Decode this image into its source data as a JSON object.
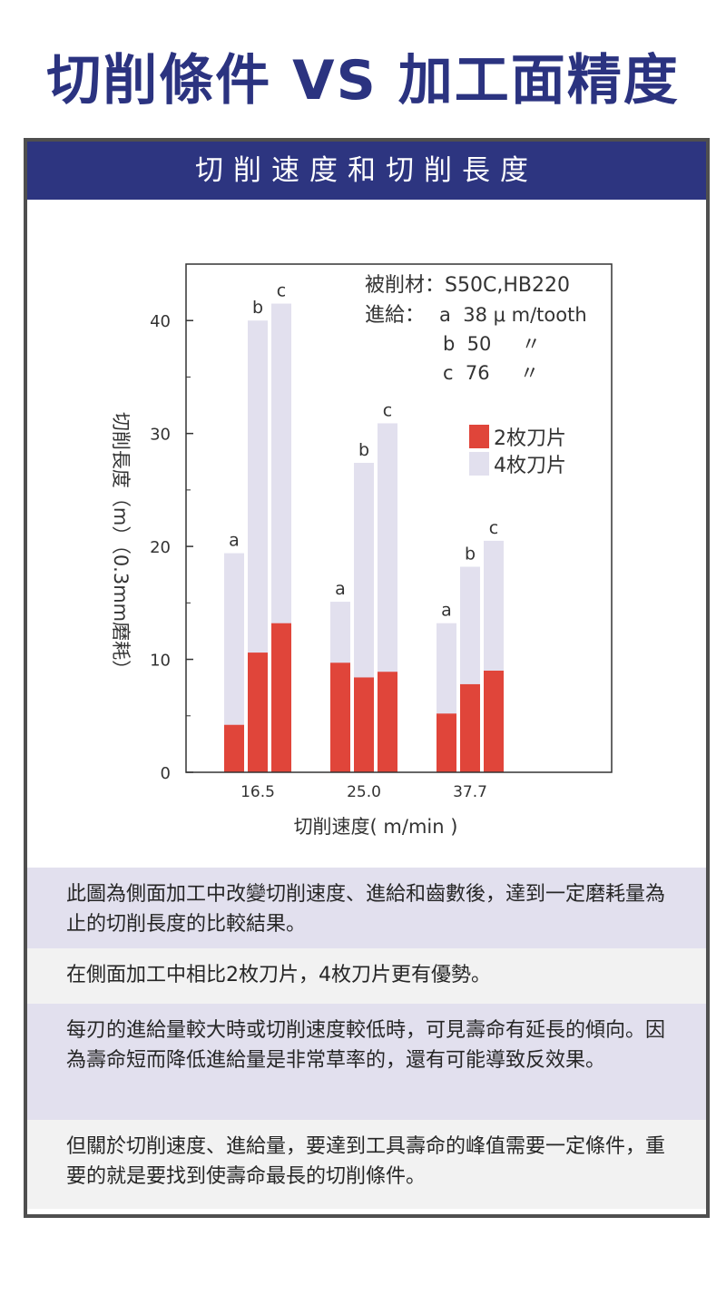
{
  "title": "切削條件 VS 加工面精度",
  "panel": {
    "header": "切削速度和切削長度"
  },
  "chart_data": {
    "type": "bar",
    "xlabel": "切削速度( m/min )",
    "ylabel": "切削長度（m）（0.3mm磨耗）",
    "ylim": [
      0,
      45
    ],
    "yticks": [
      0,
      10,
      20,
      30,
      40
    ],
    "categories": [
      "16.5",
      "25.0",
      "37.7"
    ],
    "bar_labels": [
      "a",
      "b",
      "c"
    ],
    "series": [
      {
        "name": "2枚刀片",
        "color": "#e0453a",
        "values": [
          [
            4.2,
            10.6,
            13.2
          ],
          [
            9.7,
            8.4,
            8.9
          ],
          [
            5.2,
            7.8,
            9.0
          ]
        ]
      },
      {
        "name": "4枚刀片",
        "color": "#e2e0ee",
        "values": [
          [
            19.4,
            40.0,
            41.5
          ],
          [
            15.1,
            27.4,
            30.9
          ],
          [
            13.2,
            18.2,
            20.5
          ]
        ]
      }
    ],
    "annotations": {
      "material": "被削材：S50C,HB220",
      "feed_header": "進給：",
      "feeds": [
        "a  38 μ m/tooth",
        "b  50     〃",
        "c  76     〃"
      ]
    }
  },
  "notes": [
    "此圖為側面加工中改變切削速度、進給和齒數後，達到一定磨耗量為止的切削長度的比較結果。",
    "在側面加工中相比2枚刀片，4枚刀片更有優勢。",
    "每刃的進給量較大時或切削速度較低時，可見壽命有延長的傾向。因為壽命短而降低進給量是非常草率的，還有可能導致反效果。",
    "但關於切削速度、進給量，要達到工具壽命的峰值需要一定條件，重要的就是要找到使壽命最長的切削條件。"
  ]
}
